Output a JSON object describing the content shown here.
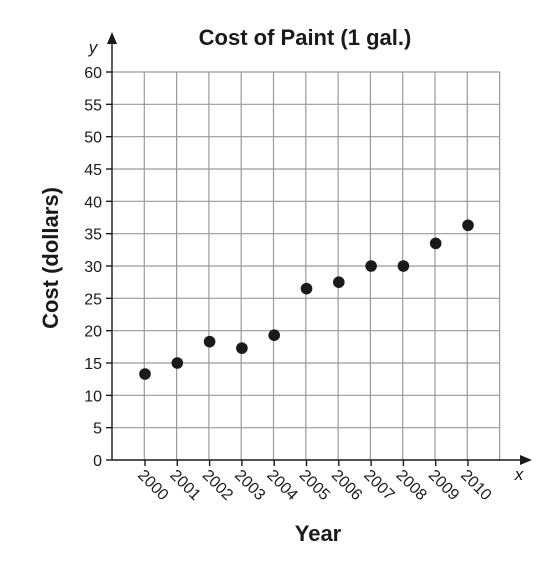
{
  "chart_data": {
    "type": "scatter",
    "title": "Cost of Paint (1 gal.)",
    "xlabel": "Year",
    "ylabel": "Cost (dollars)",
    "x_var": "x",
    "y_var": "y",
    "categories": [
      "2000",
      "2001",
      "2002",
      "2003",
      "2004",
      "2005",
      "2006",
      "2007",
      "2008",
      "2009",
      "2010"
    ],
    "values": [
      13.3,
      15,
      18.3,
      17.3,
      19.3,
      26.5,
      27.5,
      30,
      30,
      33.5,
      36.3
    ],
    "yticks": [
      0,
      5,
      10,
      15,
      20,
      25,
      30,
      35,
      40,
      45,
      50,
      55,
      60
    ],
    "ylim": [
      0,
      60
    ],
    "grid": true,
    "point_color": "#1a1a1a"
  }
}
